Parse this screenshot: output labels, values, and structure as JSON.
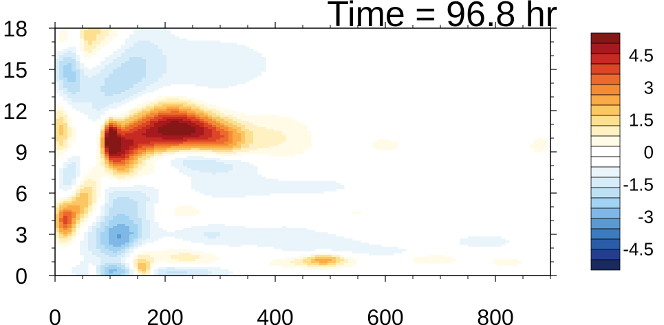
{
  "chart_data": {
    "type": "heatmap",
    "title": "Time = 96.8 hr",
    "xlabel": "",
    "ylabel": "",
    "xlim": [
      0,
      900
    ],
    "ylim": [
      0,
      18
    ],
    "x_ticks": [
      "0",
      "200",
      "400",
      "600",
      "800"
    ],
    "x_tick_values": [
      0,
      200,
      400,
      600,
      800
    ],
    "y_ticks": [
      "0",
      "3",
      "6",
      "9",
      "12",
      "15",
      "18"
    ],
    "y_tick_values": [
      0,
      3,
      6,
      9,
      12,
      15,
      18
    ],
    "colorbar": {
      "levels": [
        -5.5,
        -5,
        -4.5,
        -4,
        -3.5,
        -3,
        -2.5,
        -2,
        -1.5,
        -1,
        -0.5,
        0,
        0.5,
        1,
        1.5,
        2,
        2.5,
        3,
        3.5,
        4,
        4.5,
        5,
        5.5
      ],
      "labels": [
        "-4.5",
        "-3",
        "-1.5",
        "0",
        "1.5",
        "3",
        "4.5"
      ],
      "label_values": [
        -4.5,
        -3,
        -1.5,
        0,
        1.5,
        3,
        4.5
      ],
      "colors": [
        "#1a2a5e",
        "#213f8c",
        "#2a5ca8",
        "#3b7cbf",
        "#5a9ad3",
        "#7fb8e6",
        "#a3d3f2",
        "#bfe0f4",
        "#d6ecf8",
        "#eaf5fb",
        "#ffffff",
        "#ffffff",
        "#fffbe6",
        "#fff1c2",
        "#fde08f",
        "#fcc664",
        "#fbab46",
        "#f68b35",
        "#ec6a2b",
        "#dc4527",
        "#c52a23",
        "#a6191e",
        "#841817"
      ]
    },
    "features": [
      {
        "x": 85,
        "y": 18.0,
        "sx": 40,
        "sy": 2.0,
        "value": 2.5
      },
      {
        "x": 15,
        "y": 17.2,
        "sx": 12,
        "sy": 0.8,
        "value": 2.0
      },
      {
        "x": 25,
        "y": 15.5,
        "sx": 20,
        "sy": 2.5,
        "value": -2.0
      },
      {
        "x": 90,
        "y": 14.8,
        "sx": 50,
        "sy": 3.0,
        "value": -1.2
      },
      {
        "x": 140,
        "y": 16.0,
        "sx": 40,
        "sy": 2.5,
        "value": -0.9
      },
      {
        "x": 200,
        "y": 14.5,
        "sx": 100,
        "sy": 2.5,
        "value": -0.6
      },
      {
        "x": 330,
        "y": 15.5,
        "sx": 80,
        "sy": 1.5,
        "value": -0.5
      },
      {
        "x": 55,
        "y": 16.5,
        "sx": 15,
        "sy": 1.2,
        "value": 1.3
      },
      {
        "x": 10,
        "y": 11.0,
        "sx": 12,
        "sy": 1.5,
        "value": 1.8
      },
      {
        "x": 30,
        "y": 9.5,
        "sx": 25,
        "sy": 2.0,
        "value": 1.3
      },
      {
        "x": 45,
        "y": 7.5,
        "sx": 20,
        "sy": 1.5,
        "value": -2.8
      },
      {
        "x": 25,
        "y": 6.5,
        "sx": 15,
        "sy": 1.5,
        "value": -2.5
      },
      {
        "x": 40,
        "y": 5.5,
        "sx": 20,
        "sy": 1.5,
        "value": 3.5
      },
      {
        "x": 70,
        "y": 6.5,
        "sx": 25,
        "sy": 2.0,
        "value": 2.5
      },
      {
        "x": 18,
        "y": 4.0,
        "sx": 14,
        "sy": 1.0,
        "value": 3.8
      },
      {
        "x": 60,
        "y": 3.5,
        "sx": 25,
        "sy": 1.5,
        "value": -1.5
      },
      {
        "x": 95,
        "y": 8.0,
        "sx": 20,
        "sy": 2.5,
        "value": -2.0
      },
      {
        "x": 100,
        "y": 10.0,
        "sx": 10,
        "sy": 1.0,
        "value": 5.5
      },
      {
        "x": 115,
        "y": 8.8,
        "sx": 20,
        "sy": 1.3,
        "value": 4.2
      },
      {
        "x": 150,
        "y": 10.0,
        "sx": 35,
        "sy": 1.4,
        "value": 3.5
      },
      {
        "x": 210,
        "y": 11.0,
        "sx": 40,
        "sy": 1.3,
        "value": 4.0
      },
      {
        "x": 260,
        "y": 10.5,
        "sx": 40,
        "sy": 1.0,
        "value": 3.3
      },
      {
        "x": 310,
        "y": 9.8,
        "sx": 30,
        "sy": 0.9,
        "value": 2.0
      },
      {
        "x": 390,
        "y": 9.8,
        "sx": 60,
        "sy": 1.5,
        "value": 1.2
      },
      {
        "x": 175,
        "y": 7.5,
        "sx": 50,
        "sy": 1.5,
        "value": 1.0
      },
      {
        "x": 200,
        "y": 8.5,
        "sx": 60,
        "sy": 0.6,
        "value": -1.5
      },
      {
        "x": 290,
        "y": 8.2,
        "sx": 60,
        "sy": 0.6,
        "value": -1.2
      },
      {
        "x": 200,
        "y": 6.0,
        "sx": 80,
        "sy": 1.0,
        "value": -1.0
      },
      {
        "x": 350,
        "y": 7.0,
        "sx": 80,
        "sy": 1.5,
        "value": -0.6
      },
      {
        "x": 140,
        "y": 5.0,
        "sx": 40,
        "sy": 1.8,
        "value": -1.3
      },
      {
        "x": 120,
        "y": 2.5,
        "sx": 30,
        "sy": 1.2,
        "value": -2.5
      },
      {
        "x": 150,
        "y": 1.2,
        "sx": 20,
        "sy": 0.8,
        "value": 1.8
      },
      {
        "x": 220,
        "y": 5.0,
        "sx": 40,
        "sy": 1.0,
        "value": 1.0
      },
      {
        "x": 270,
        "y": 3.0,
        "sx": 50,
        "sy": 1.0,
        "value": -1.0
      },
      {
        "x": 300,
        "y": 4.5,
        "sx": 60,
        "sy": 0.7,
        "value": 0.8
      },
      {
        "x": 240,
        "y": 1.3,
        "sx": 50,
        "sy": 0.7,
        "value": 1.5
      },
      {
        "x": 230,
        "y": 0.3,
        "sx": 60,
        "sy": 0.4,
        "value": -2.0
      },
      {
        "x": 100,
        "y": 0.3,
        "sx": 40,
        "sy": 0.4,
        "value": -2.0
      },
      {
        "x": 160,
        "y": 0.4,
        "sx": 12,
        "sy": 0.4,
        "value": 3.0
      },
      {
        "x": 70,
        "y": 0.3,
        "sx": 10,
        "sy": 0.4,
        "value": 1.5
      },
      {
        "x": 470,
        "y": 1.0,
        "sx": 70,
        "sy": 0.35,
        "value": 1.2
      },
      {
        "x": 490,
        "y": 1.2,
        "sx": 25,
        "sy": 0.35,
        "value": 2.0
      },
      {
        "x": 420,
        "y": 3.0,
        "sx": 100,
        "sy": 1.0,
        "value": -0.6
      },
      {
        "x": 540,
        "y": 4.5,
        "sx": 60,
        "sy": 0.6,
        "value": 0.6
      },
      {
        "x": 500,
        "y": 2.0,
        "sx": 60,
        "sy": 0.5,
        "value": -0.6
      },
      {
        "x": 680,
        "y": 1.2,
        "sx": 40,
        "sy": 0.3,
        "value": 1.2
      },
      {
        "x": 620,
        "y": 1.5,
        "sx": 50,
        "sy": 0.5,
        "value": -0.6
      },
      {
        "x": 780,
        "y": 2.5,
        "sx": 70,
        "sy": 0.7,
        "value": -0.6
      },
      {
        "x": 820,
        "y": 1.0,
        "sx": 30,
        "sy": 0.3,
        "value": 0.8
      },
      {
        "x": 600,
        "y": 9.5,
        "sx": 40,
        "sy": 0.6,
        "value": 0.6
      },
      {
        "x": 880,
        "y": 9.5,
        "sx": 15,
        "sy": 0.5,
        "value": 0.8
      },
      {
        "x": 480,
        "y": 6.5,
        "sx": 60,
        "sy": 0.5,
        "value": -0.6
      }
    ]
  }
}
